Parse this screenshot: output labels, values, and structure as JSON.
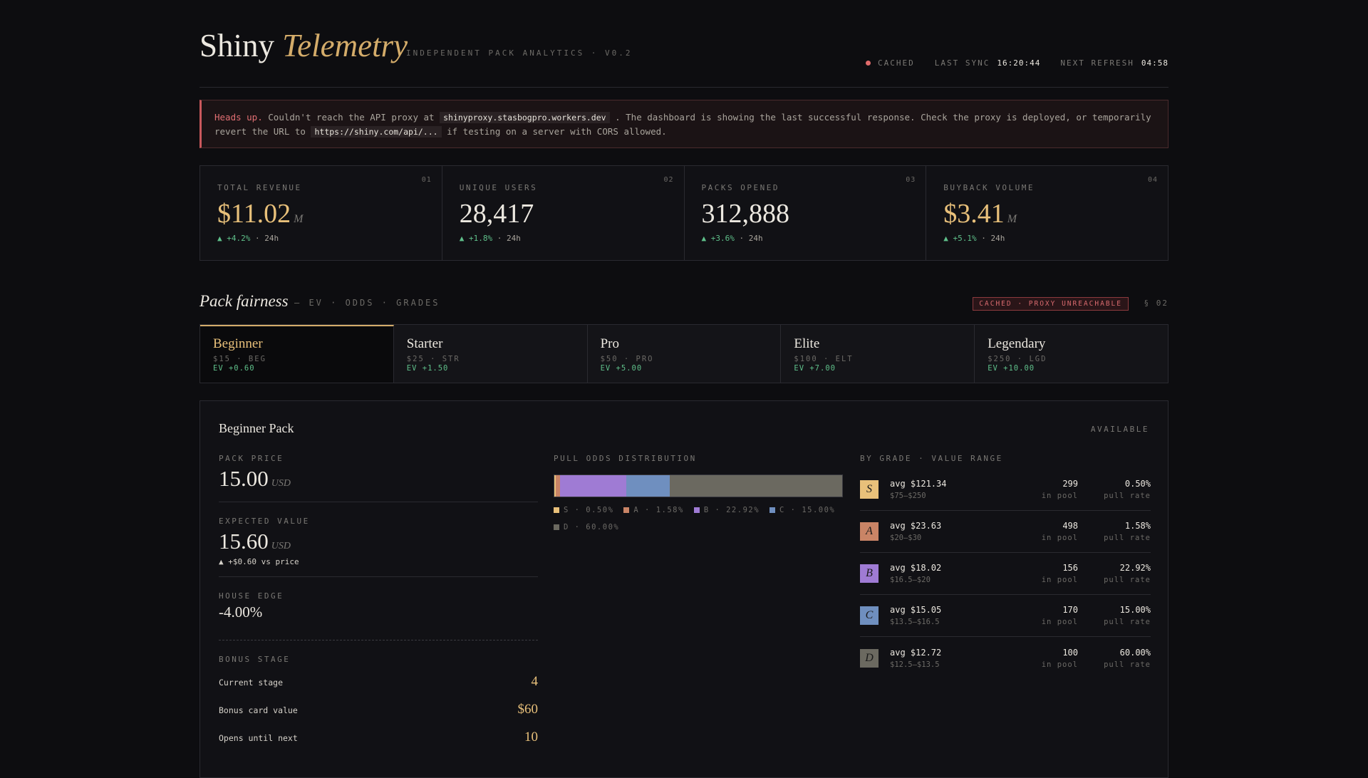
{
  "header": {
    "brand_main": "Shiny",
    "brand_accent": "Telemetry",
    "subtitle": "INDEPENDENT PACK ANALYTICS · V0.2",
    "status_label": "CACHED",
    "last_sync_label": "LAST SYNC",
    "last_sync_value": "16:20:44",
    "next_refresh_label": "NEXT REFRESH",
    "next_refresh_value": "04:58"
  },
  "alert": {
    "strong": "Heads up.",
    "text1": "Couldn't reach the API proxy at",
    "code1": "shinyproxy.stasbogpro.workers.dev",
    "text2": ". The dashboard is showing the last successful response. Check the proxy is deployed, or temporarily revert the URL to",
    "code2": "https://shiny.com/api/...",
    "text3": "if testing on a server with CORS allowed."
  },
  "stats": [
    {
      "num": "01",
      "label": "TOTAL REVENUE",
      "value": "$11.02",
      "unit": "M",
      "delta": "▲ +4.2%",
      "period": "· 24h"
    },
    {
      "num": "02",
      "label": "UNIQUE USERS",
      "value": "28,417",
      "unit": "",
      "delta": "▲ +1.8%",
      "period": "· 24h"
    },
    {
      "num": "03",
      "label": "PACKS OPENED",
      "value": "312,888",
      "unit": "",
      "delta": "▲ +3.6%",
      "period": "· 24h"
    },
    {
      "num": "04",
      "label": "BUYBACK VOLUME",
      "value": "$3.41",
      "unit": "M",
      "delta": "▲ +5.1%",
      "period": "· 24h"
    }
  ],
  "section": {
    "title": "Pack fairness",
    "sub": "— EV · ODDS · GRADES",
    "badge": "CACHED · PROXY UNREACHABLE",
    "num": "§ 02"
  },
  "tabs": [
    {
      "name": "Beginner",
      "meta": "$15 · BEG",
      "ev": "EV +0.60"
    },
    {
      "name": "Starter",
      "meta": "$25 · STR",
      "ev": "EV +1.50"
    },
    {
      "name": "Pro",
      "meta": "$50 · PRO",
      "ev": "EV +5.00"
    },
    {
      "name": "Elite",
      "meta": "$100 · ELT",
      "ev": "EV +7.00"
    },
    {
      "name": "Legendary",
      "meta": "$250 · LGD",
      "ev": "EV +10.00"
    }
  ],
  "panel": {
    "title": "Beginner Pack",
    "availability": "AVAILABLE",
    "pack_price_label": "PACK PRICE",
    "pack_price": "15.00",
    "pack_price_unit": "USD",
    "ev_label": "EXPECTED VALUE",
    "ev": "15.60",
    "ev_unit": "USD",
    "ev_note": "▲ +$0.60 vs price",
    "house_edge_label": "HOUSE EDGE",
    "house_edge": "-4.00%",
    "bonus_label": "BONUS STAGE",
    "bonus": [
      {
        "k": "Current stage",
        "v": "4"
      },
      {
        "k": "Bonus card value",
        "v": "$60"
      },
      {
        "k": "Opens until next",
        "v": "10"
      }
    ],
    "odds_label": "PULL ODDS DISTRIBUTION",
    "grades_label": "BY GRADE · VALUE RANGE"
  },
  "chart_data": {
    "type": "bar",
    "categories": [
      "S",
      "A",
      "B",
      "C",
      "D"
    ],
    "values": [
      0.5,
      1.58,
      22.92,
      15.0,
      60.0
    ],
    "legend": [
      "S · 0.50%",
      "A · 1.58%",
      "B · 22.92%",
      "C · 15.00%",
      "D · 60.00%"
    ],
    "colors": [
      "#e8c07a",
      "#c98466",
      "#9f7bd4",
      "#6f8fbf",
      "#6b6960"
    ]
  },
  "grades": [
    {
      "grade": "S",
      "avg": "avg $121.34",
      "range": "$75–$250",
      "pool": "299",
      "pool_label": "in pool",
      "rate": "0.50%",
      "rate_label": "pull rate"
    },
    {
      "grade": "A",
      "avg": "avg $23.63",
      "range": "$20–$30",
      "pool": "498",
      "pool_label": "in pool",
      "rate": "1.58%",
      "rate_label": "pull rate"
    },
    {
      "grade": "B",
      "avg": "avg $18.02",
      "range": "$16.5–$20",
      "pool": "156",
      "pool_label": "in pool",
      "rate": "22.92%",
      "rate_label": "pull rate"
    },
    {
      "grade": "C",
      "avg": "avg $15.05",
      "range": "$13.5–$16.5",
      "pool": "170",
      "pool_label": "in pool",
      "rate": "15.00%",
      "rate_label": "pull rate"
    },
    {
      "grade": "D",
      "avg": "avg $12.72",
      "range": "$12.5–$13.5",
      "pool": "100",
      "pool_label": "in pool",
      "rate": "60.00%",
      "rate_label": "pull rate"
    }
  ]
}
